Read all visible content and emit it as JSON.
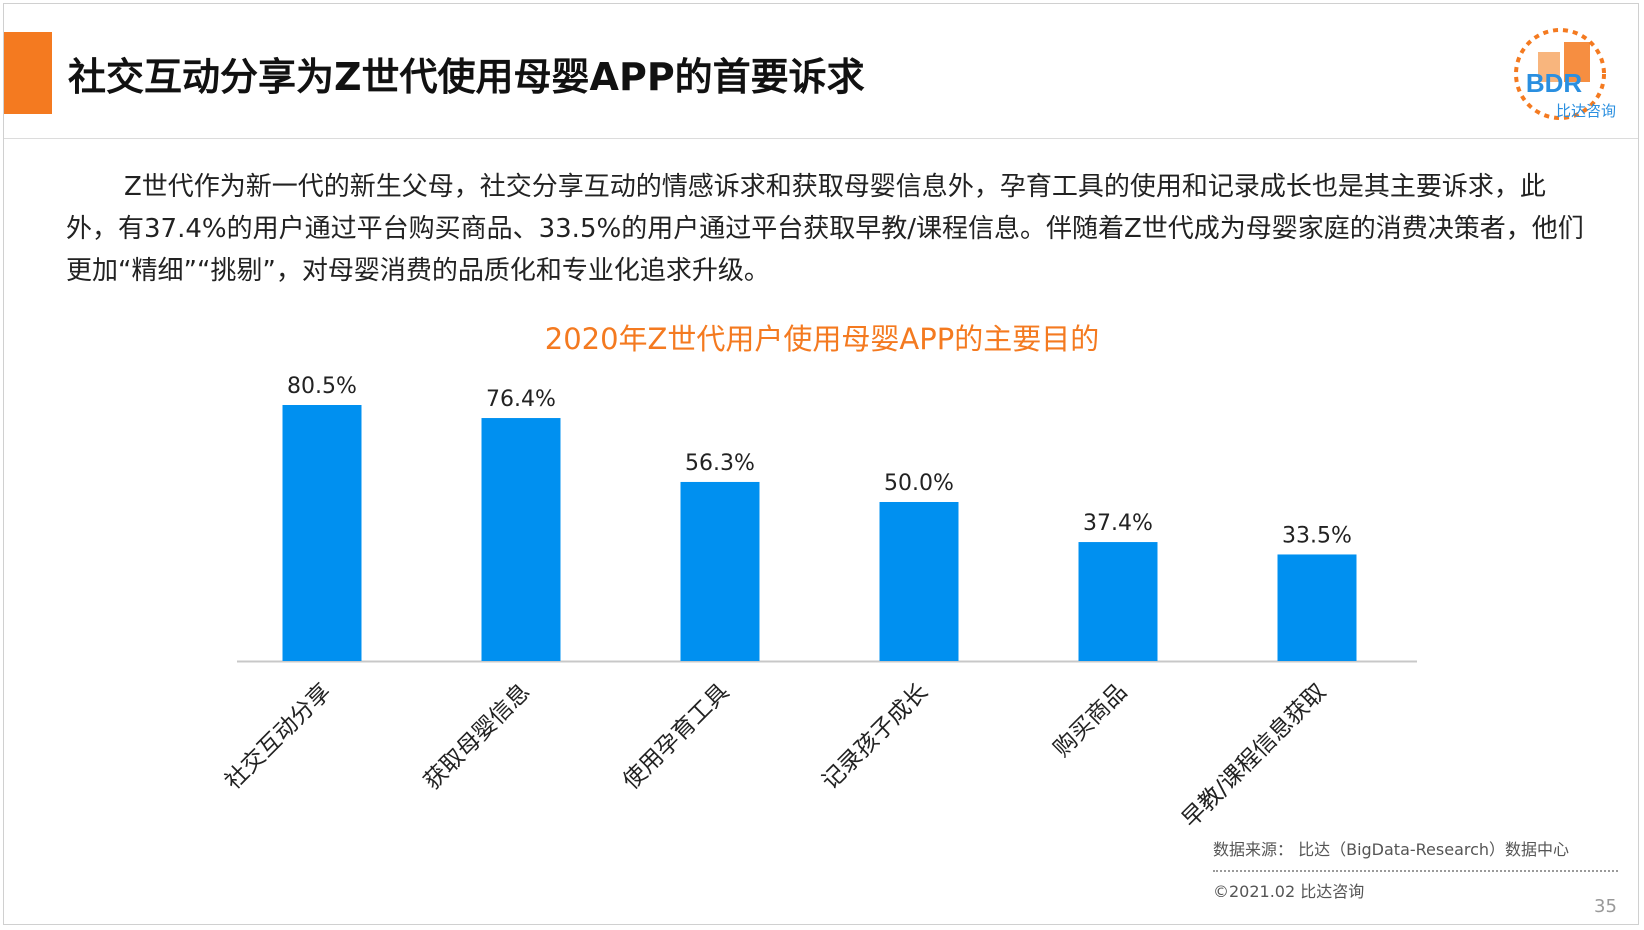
{
  "header": {
    "title": "社交互动分享为Z世代使用母婴APP的首要诉求",
    "logo_text": "BDR",
    "logo_sub": "比达咨询"
  },
  "body": {
    "paragraph": "Z世代作为新一代的新生父母，社交分享互动的情感诉求和获取母婴信息外，孕育工具的使用和记录成长也是其主要诉求，此外，有37.4%的用户通过平台购买商品、33.5%的用户通过平台获取早教/课程信息。伴随着Z世代成为母婴家庭的消费决策者，他们更加“精细”“挑剔”，对母婴消费的品质化和专业化追求升级。"
  },
  "chart_data": {
    "type": "bar",
    "title": "2020年Z世代用户使用母婴APP的主要目的",
    "categories": [
      "社交互动分享",
      "获取母婴信息",
      "使用孕育工具",
      "记录孩子成长",
      "购买商品",
      "早教/课程信息获取"
    ],
    "values": [
      80.5,
      76.4,
      56.3,
      50.0,
      37.4,
      33.5
    ],
    "value_labels": [
      "80.5%",
      "76.4%",
      "56.3%",
      "50.0%",
      "37.4%",
      "33.5%"
    ],
    "bar_color": "#0090f0",
    "ylim": [
      0,
      80.5
    ],
    "grid": false,
    "legend": "none"
  },
  "footer": {
    "source": "数据来源： 比达（BigData-Research）数据中心",
    "copyright": "©2021.02  比达咨询",
    "page_number": "35"
  },
  "colors": {
    "accent": "#f47a20",
    "bar": "#0090f0",
    "logo_blue": "#2a8fe0"
  }
}
